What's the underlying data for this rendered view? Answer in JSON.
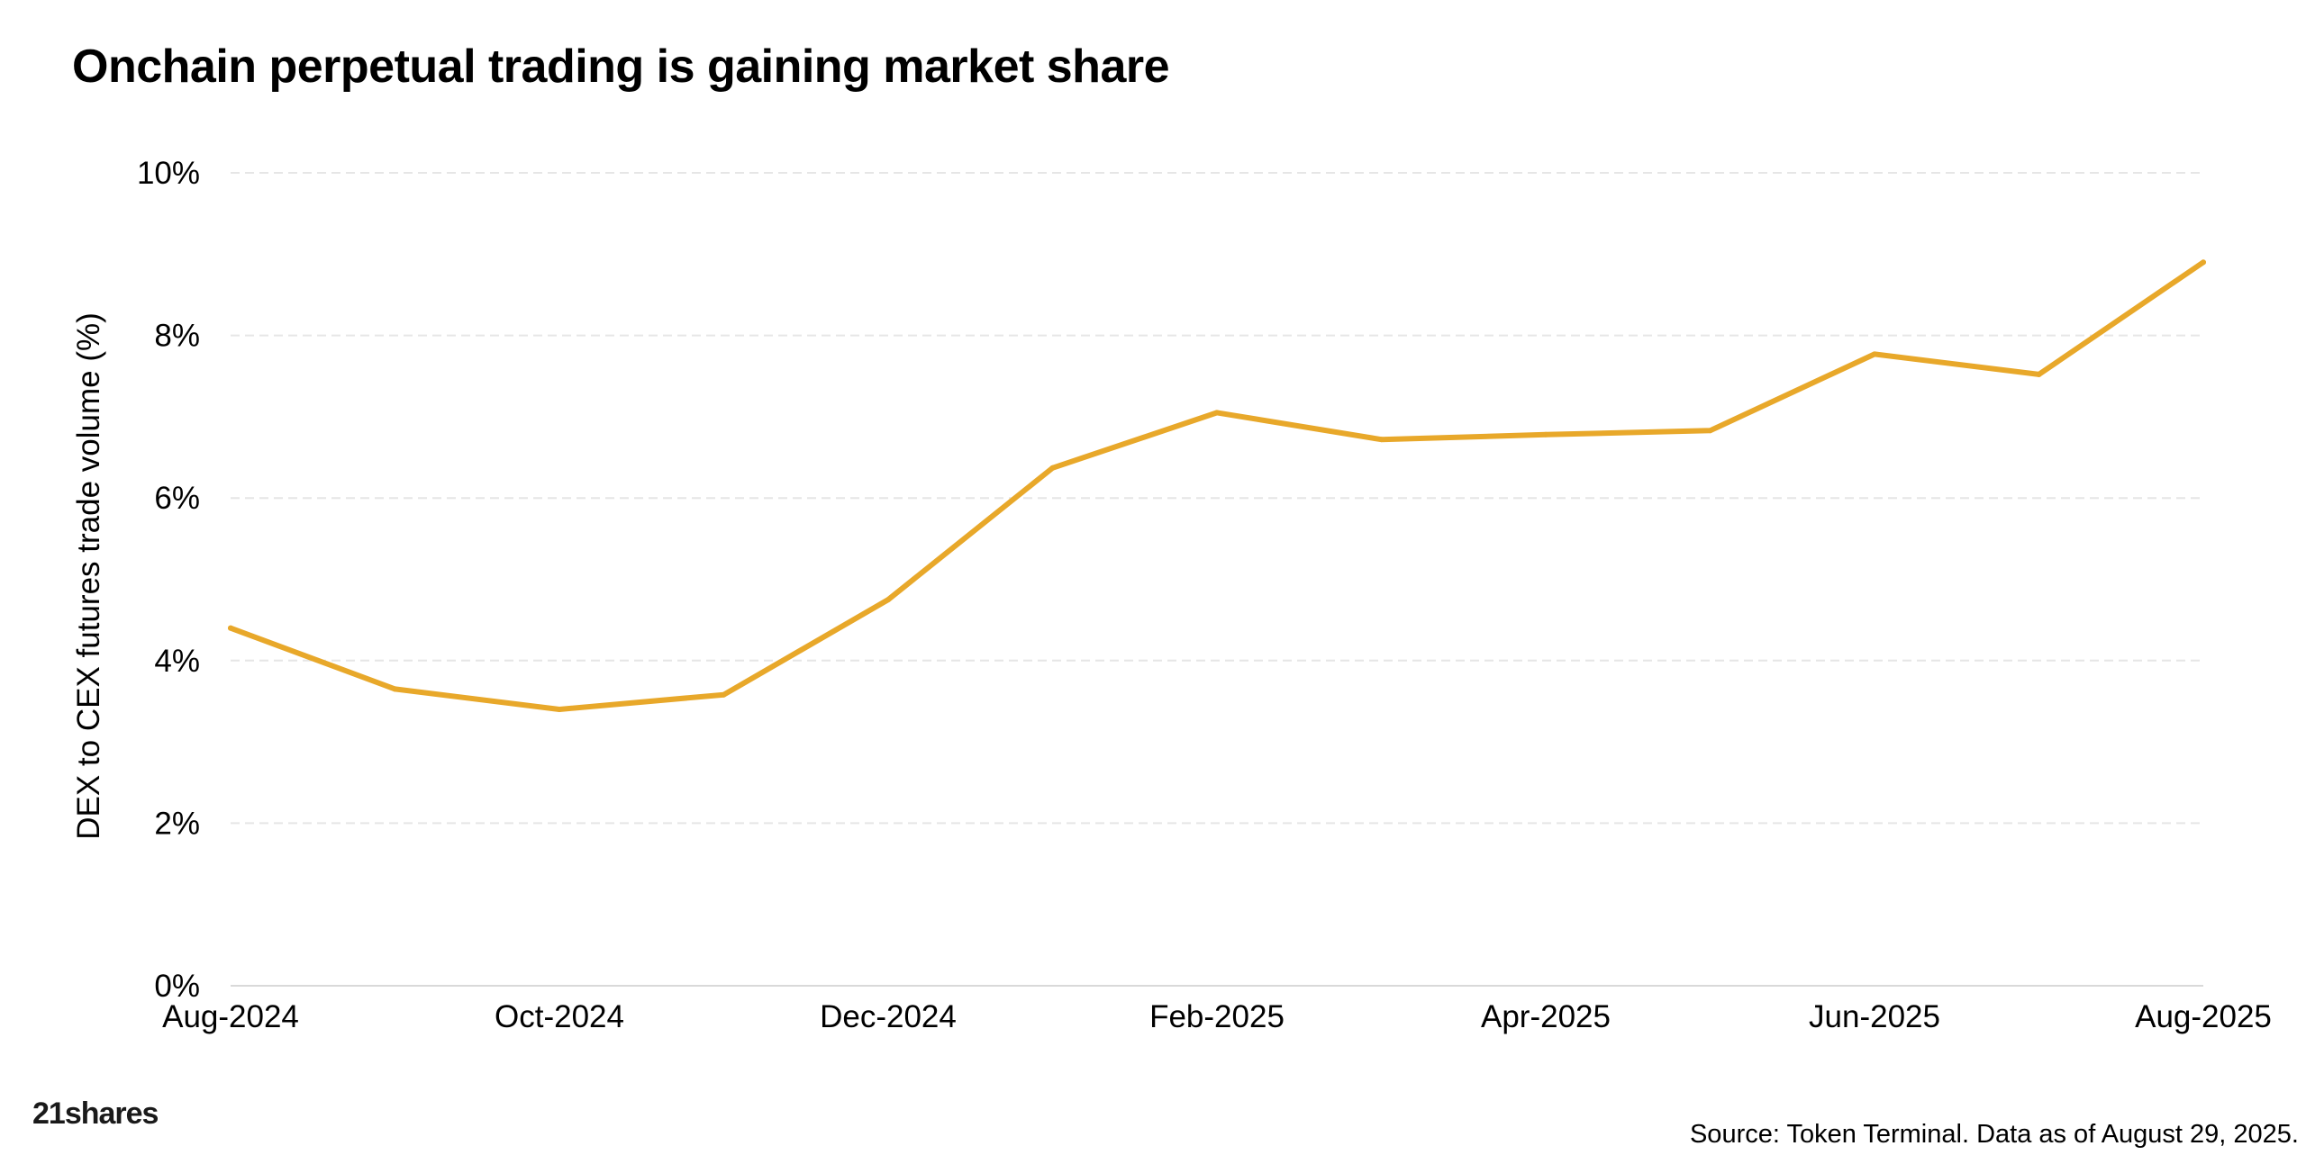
{
  "title": "Onchain perpetual trading is gaining market share",
  "logo_text": "21shares",
  "source": "Source: Token Terminal. Data as of August 29, 2025.",
  "colors": {
    "line": "#E8A82A",
    "grid": "#E6E6E6",
    "axis": "#D9D9D9",
    "text": "#000000"
  },
  "chart_data": {
    "type": "line",
    "title": "Onchain perpetual trading is gaining market share",
    "xlabel": "",
    "ylabel": "DEX to CEX futures trade volume (%)",
    "x": [
      "Aug-2024",
      "Sep-2024",
      "Oct-2024",
      "Nov-2024",
      "Dec-2024",
      "Jan-2025",
      "Feb-2025",
      "Mar-2025",
      "Apr-2025",
      "May-2025",
      "Jun-2025",
      "Jul-2025",
      "Aug-2025"
    ],
    "x_tick_labels": [
      "Aug-2024",
      "Oct-2024",
      "Dec-2024",
      "Feb-2025",
      "Apr-2025",
      "Jun-2025",
      "Aug-2025"
    ],
    "y_tick_labels": [
      "0%",
      "2%",
      "4%",
      "6%",
      "8%",
      "10%"
    ],
    "ylim": [
      0,
      10
    ],
    "grid": true,
    "series": [
      {
        "values": [
          4.4,
          3.65,
          3.4,
          3.58,
          4.75,
          6.37,
          7.05,
          6.72,
          6.78,
          6.83,
          7.77,
          7.52,
          8.9
        ]
      }
    ]
  }
}
